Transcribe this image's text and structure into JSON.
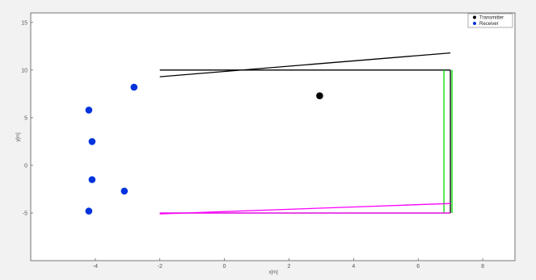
{
  "chart_data": {
    "type": "scatter",
    "title": "",
    "xlabel": "x[m]",
    "ylabel": "y[m]",
    "xlim": [
      -6,
      9
    ],
    "ylim": [
      -10,
      16
    ],
    "grid": false,
    "legend_placement": "top-right",
    "xticks": [
      "-4",
      "-2",
      "0",
      "2",
      "4",
      "6",
      "8"
    ],
    "yticks": [
      "15",
      "10",
      "5",
      "0",
      "-5"
    ],
    "legend": [
      {
        "label": "Transmitter",
        "color": "#000000"
      },
      {
        "label": "Receiver",
        "color": "#0033dd"
      }
    ],
    "series": [
      {
        "name": "Transmitter",
        "color": "#000000",
        "points": [
          [
            2.95,
            7.3
          ]
        ]
      },
      {
        "name": "Receiver",
        "color": "#0033dd",
        "points": [
          [
            -2.8,
            8.2
          ],
          [
            -4.2,
            5.8
          ],
          [
            -4.1,
            2.5
          ],
          [
            -4.1,
            -1.5
          ],
          [
            -3.1,
            -2.7
          ],
          [
            -4.2,
            -4.8
          ]
        ]
      }
    ],
    "lines": [
      {
        "color": "#000000",
        "points": [
          [
            -2,
            10
          ],
          [
            7,
            10
          ]
        ]
      },
      {
        "color": "#000000",
        "points": [
          [
            -2,
            9.3
          ],
          [
            7,
            11.8
          ]
        ]
      },
      {
        "color": "#000000",
        "points": [
          [
            7,
            10
          ],
          [
            7,
            -5
          ]
        ]
      },
      {
        "color": "#00dd00",
        "points": [
          [
            6.8,
            10
          ],
          [
            6.8,
            -5
          ]
        ]
      },
      {
        "color": "#00dd00",
        "points": [
          [
            7.05,
            10
          ],
          [
            7.05,
            -5
          ]
        ]
      },
      {
        "color": "#000000",
        "points": [
          [
            -2,
            -5
          ],
          [
            7,
            -5
          ]
        ]
      },
      {
        "color": "#ff00ff",
        "points": [
          [
            -2,
            -5
          ],
          [
            7,
            -5
          ]
        ]
      },
      {
        "color": "#ff00ff",
        "points": [
          [
            -2,
            -5.1
          ],
          [
            7,
            -4
          ]
        ]
      }
    ]
  }
}
